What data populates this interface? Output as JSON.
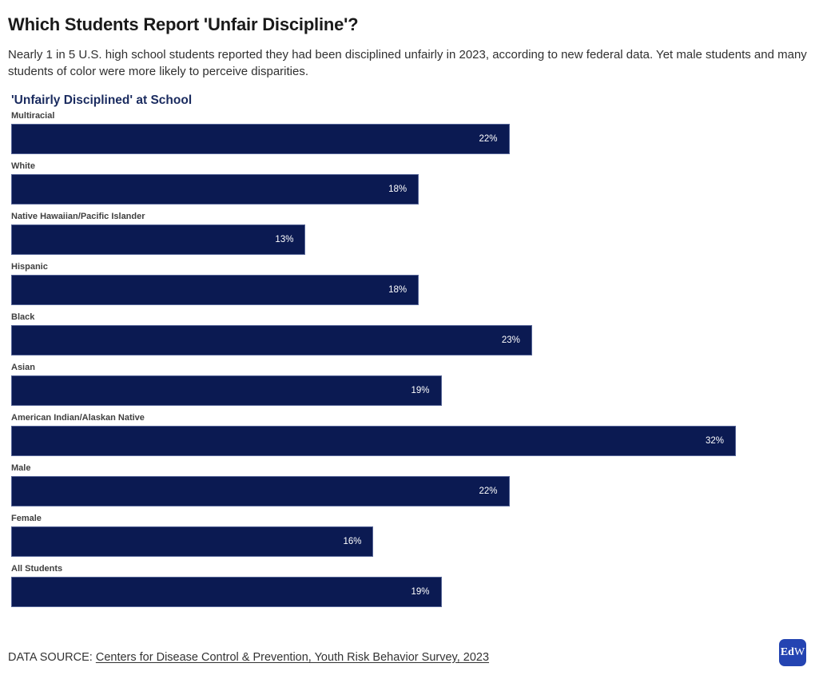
{
  "page": {
    "title": "Which Students Report 'Unfair Discipline'?",
    "subtitle": "Nearly 1 in 5 U.S. high school students reported they had been disciplined unfairly in 2023, according to new federal data. Yet male students and many students of color were more likely to perceive disparities."
  },
  "chart_data": {
    "type": "bar",
    "orientation": "horizontal",
    "title": "'Unfairly Disciplined' at School",
    "categories": [
      "Multiracial",
      "White",
      "Native Hawaiian/Pacific Islander",
      "Hispanic",
      "Black",
      "Asian",
      "American Indian/Alaskan Native",
      "Male",
      "Female",
      "All Students"
    ],
    "values": [
      22,
      18,
      13,
      18,
      23,
      19,
      32,
      22,
      16,
      19
    ],
    "value_labels": [
      "22%",
      "18%",
      "13%",
      "18%",
      "23%",
      "19%",
      "32%",
      "22%",
      "16%",
      "19%"
    ],
    "unit": "%",
    "xlim": [
      0,
      35
    ],
    "grid": false,
    "legend": false,
    "bar_color": "#0b1a52",
    "value_label_color": "#ffffff",
    "value_label_position": "inside-right",
    "category_label_position": "above-bar"
  },
  "footer": {
    "source_prefix": "DATA SOURCE: ",
    "source_link": "Centers for Disease Control & Prevention, Youth Risk Behavior Survey, 2023",
    "logo_bold": "Ed",
    "logo_light": "W",
    "logo_color": "#2444b2"
  }
}
